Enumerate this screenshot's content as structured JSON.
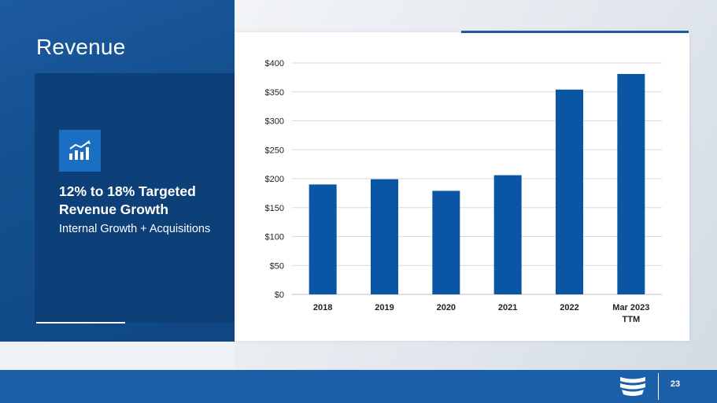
{
  "slide": {
    "title": "Revenue",
    "page_number": "23"
  },
  "card": {
    "icon": "bar-chart-growth-icon",
    "headline": "12% to 18% Targeted Revenue Growth",
    "subtext": "Internal Growth + Acquisitions"
  },
  "colors": {
    "bar": "#0b56a4",
    "card_bg": "#0d3f78",
    "footer_bg": "#1a5fa8",
    "icon_box": "#1b6fc2",
    "grid": "#d9d9d9"
  },
  "footer": {
    "logo_icon": "company-logo-icon"
  },
  "chart_data": {
    "type": "bar",
    "categories": [
      "2018",
      "2019",
      "2020",
      "2021",
      "2022",
      "Mar 2023 TTM"
    ],
    "values": [
      190,
      199,
      179,
      206,
      354,
      381
    ],
    "ylim": [
      0,
      400
    ],
    "y_ticks": [
      "$0",
      "$50",
      "$100",
      "$150",
      "$200",
      "$250",
      "$300",
      "$350",
      "$400"
    ],
    "y_tick_values": [
      0,
      50,
      100,
      150,
      200,
      250,
      300,
      350,
      400
    ],
    "grid": true,
    "legend": "none"
  }
}
